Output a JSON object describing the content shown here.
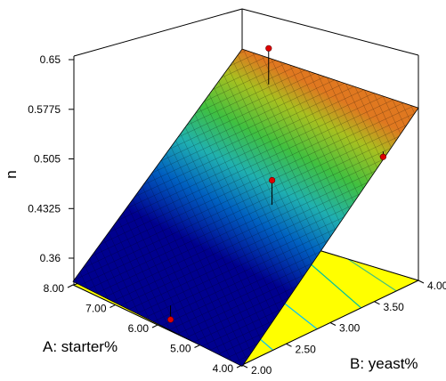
{
  "chart_data": {
    "type": "surface3d",
    "title": "",
    "zlabel": "n",
    "xlabel": "A: starter%",
    "ylabel": "B: yeast%",
    "z_ticks": [
      "0.36",
      "0.4325",
      "0.505",
      "0.5775",
      "0.65"
    ],
    "zlim": [
      0.36,
      0.65
    ],
    "a_ticks": [
      "4.00",
      "5.00",
      "6.00",
      "7.00",
      "8.00"
    ],
    "alim": [
      4.0,
      8.0
    ],
    "b_ticks": [
      "2.00",
      "2.50",
      "3.00",
      "3.50",
      "4.00"
    ],
    "blim": [
      2.0,
      4.0
    ],
    "surface_corners": [
      {
        "A": 8.0,
        "B": 2.0,
        "n": 0.365
      },
      {
        "A": 4.0,
        "B": 2.0,
        "n": 0.358
      },
      {
        "A": 4.0,
        "B": 4.0,
        "n": 0.612
      },
      {
        "A": 8.0,
        "B": 4.0,
        "n": 0.62
      }
    ],
    "design_points": [
      {
        "A": 6.0,
        "B": 2.15,
        "n": 0.36
      },
      {
        "A": 5.45,
        "B": 3.05,
        "n": 0.53
      },
      {
        "A": 4.1,
        "B": 3.65,
        "n": 0.56
      },
      {
        "A": 7.05,
        "B": 3.82,
        "n": 0.648
      }
    ],
    "surface_colormap": [
      "#00008f",
      "#0060c0",
      "#20b0b0",
      "#40c040",
      "#a8c020",
      "#e07820"
    ],
    "floor_color": "#ffff00",
    "contour_colors": [
      "#303080",
      "#00c0ff",
      "#00c0ff",
      "#00c0a0",
      "#40c080"
    ],
    "point_color": "#dd0000",
    "grid": false
  }
}
